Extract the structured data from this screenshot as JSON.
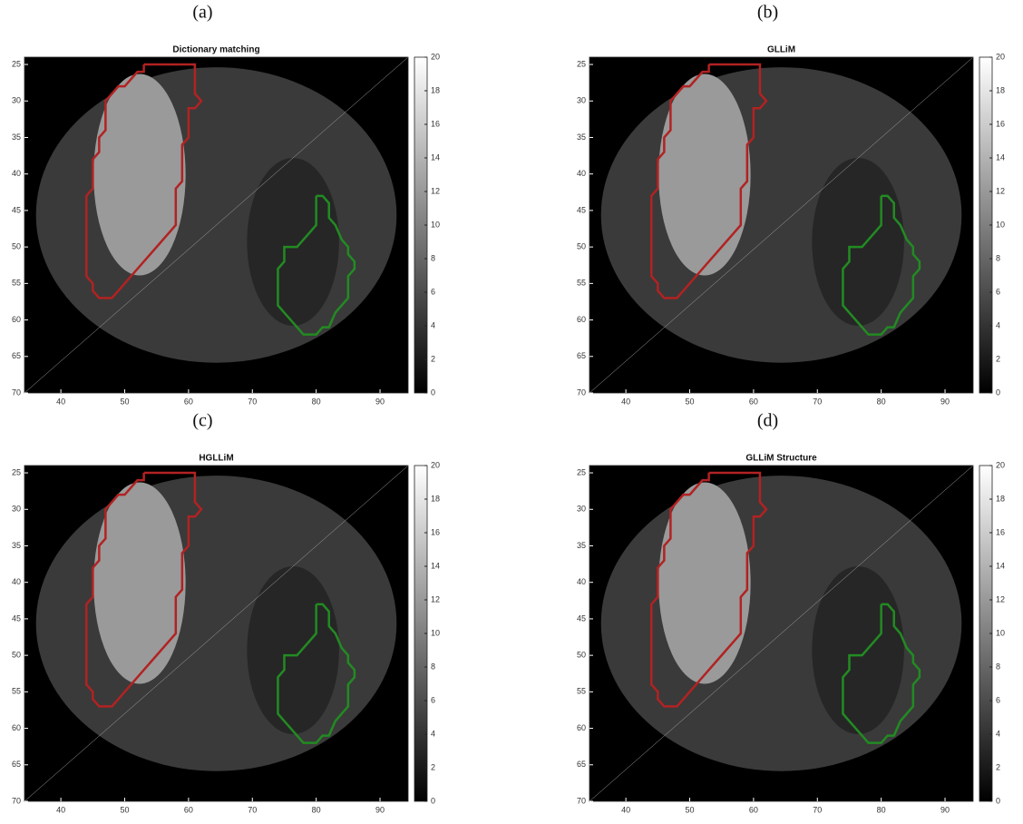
{
  "chart_data": [
    {
      "type": "heatmap",
      "panel_label": "(a)",
      "title": "Dictionary matching",
      "xlim": [
        34.3,
        94.4
      ],
      "ylim": [
        24,
        70
      ],
      "y_reversed": true,
      "xticks": [
        40,
        50,
        60,
        70,
        80,
        90
      ],
      "yticks": [
        25,
        30,
        35,
        40,
        45,
        50,
        55,
        60,
        65,
        70
      ],
      "clim": [
        0,
        20
      ],
      "cticks": [
        0,
        2,
        4,
        6,
        8,
        10,
        12,
        14,
        16,
        18,
        20
      ],
      "colormap": [
        "#000000",
        "#ffffff"
      ],
      "contours": [
        {
          "color": "#b22222",
          "x": [
            53,
            61,
            61,
            62,
            61,
            60,
            60,
            59,
            59,
            58,
            58,
            57,
            55,
            53,
            51,
            49,
            48,
            46,
            45,
            45,
            44,
            44,
            45,
            45,
            46,
            46,
            47,
            47,
            48,
            49,
            50,
            51,
            52,
            53,
            53
          ],
          "y": [
            25,
            25,
            29,
            30,
            31,
            31,
            35,
            36,
            41,
            42,
            47,
            48,
            50,
            52,
            54,
            56,
            57,
            57,
            56,
            55,
            54,
            43,
            42,
            38,
            37,
            35,
            34,
            30,
            29,
            28,
            28,
            27,
            26,
            26,
            25
          ]
        },
        {
          "color": "#228b22",
          "x": [
            80,
            81,
            82,
            82,
            83,
            84,
            85,
            85,
            86,
            86,
            85,
            85,
            84,
            83,
            82,
            81,
            80,
            78,
            77,
            75,
            74,
            74,
            75,
            75,
            77,
            78,
            79,
            80,
            80,
            80
          ],
          "y": [
            43,
            43,
            44,
            46,
            47,
            49,
            50,
            51,
            52,
            53,
            54,
            57,
            58,
            59,
            61,
            61,
            62,
            62,
            61,
            59,
            58,
            53,
            52,
            50,
            50,
            49,
            48,
            47,
            45,
            43
          ]
        }
      ]
    },
    {
      "type": "heatmap",
      "panel_label": "(b)",
      "title": "GLLiM",
      "xlim": [
        34.3,
        94.4
      ],
      "ylim": [
        24,
        70
      ],
      "y_reversed": true,
      "xticks": [
        40,
        50,
        60,
        70,
        80,
        90
      ],
      "yticks": [
        25,
        30,
        35,
        40,
        45,
        50,
        55,
        60,
        65,
        70
      ],
      "clim": [
        0,
        20
      ],
      "cticks": [
        0,
        2,
        4,
        6,
        8,
        10,
        12,
        14,
        16,
        18,
        20
      ],
      "colormap": [
        "#000000",
        "#ffffff"
      ],
      "contours": [
        {
          "color": "#b22222",
          "x": [
            53,
            61,
            61,
            62,
            61,
            60,
            60,
            59,
            59,
            58,
            58,
            57,
            55,
            53,
            51,
            49,
            48,
            46,
            45,
            45,
            44,
            44,
            45,
            45,
            46,
            46,
            47,
            47,
            48,
            49,
            50,
            51,
            52,
            53,
            53
          ],
          "y": [
            25,
            25,
            29,
            30,
            31,
            31,
            35,
            36,
            41,
            42,
            47,
            48,
            50,
            52,
            54,
            56,
            57,
            57,
            56,
            55,
            54,
            43,
            42,
            38,
            37,
            35,
            34,
            30,
            29,
            28,
            28,
            27,
            26,
            26,
            25
          ]
        },
        {
          "color": "#228b22",
          "x": [
            80,
            81,
            82,
            82,
            83,
            84,
            85,
            85,
            86,
            86,
            85,
            85,
            84,
            83,
            82,
            81,
            80,
            78,
            77,
            75,
            74,
            74,
            75,
            75,
            77,
            78,
            79,
            80,
            80,
            80
          ],
          "y": [
            43,
            43,
            44,
            46,
            47,
            49,
            50,
            51,
            52,
            53,
            54,
            57,
            58,
            59,
            61,
            61,
            62,
            62,
            61,
            59,
            58,
            53,
            52,
            50,
            50,
            49,
            48,
            47,
            45,
            43
          ]
        }
      ]
    },
    {
      "type": "heatmap",
      "panel_label": "(c)",
      "title": "HGLLiM",
      "xlim": [
        34.3,
        94.4
      ],
      "ylim": [
        24,
        70
      ],
      "y_reversed": true,
      "xticks": [
        40,
        50,
        60,
        70,
        80,
        90
      ],
      "yticks": [
        25,
        30,
        35,
        40,
        45,
        50,
        55,
        60,
        65,
        70
      ],
      "clim": [
        0,
        20
      ],
      "cticks": [
        0,
        2,
        4,
        6,
        8,
        10,
        12,
        14,
        16,
        18,
        20
      ],
      "colormap": [
        "#000000",
        "#ffffff"
      ],
      "contours": [
        {
          "color": "#b22222",
          "x": [
            53,
            61,
            61,
            62,
            61,
            60,
            60,
            59,
            59,
            58,
            58,
            57,
            55,
            53,
            51,
            49,
            48,
            46,
            45,
            45,
            44,
            44,
            45,
            45,
            46,
            46,
            47,
            47,
            48,
            49,
            50,
            51,
            52,
            53,
            53
          ],
          "y": [
            25,
            25,
            29,
            30,
            31,
            31,
            35,
            36,
            41,
            42,
            47,
            48,
            50,
            52,
            54,
            56,
            57,
            57,
            56,
            55,
            54,
            43,
            42,
            38,
            37,
            35,
            34,
            30,
            29,
            28,
            28,
            27,
            26,
            26,
            25
          ]
        },
        {
          "color": "#228b22",
          "x": [
            80,
            81,
            82,
            82,
            83,
            84,
            85,
            85,
            86,
            86,
            85,
            85,
            84,
            83,
            82,
            81,
            80,
            78,
            77,
            75,
            74,
            74,
            75,
            75,
            77,
            78,
            79,
            80,
            80,
            80
          ],
          "y": [
            43,
            43,
            44,
            46,
            47,
            49,
            50,
            51,
            52,
            53,
            54,
            57,
            58,
            59,
            61,
            61,
            62,
            62,
            61,
            59,
            58,
            53,
            52,
            50,
            50,
            49,
            48,
            47,
            45,
            43
          ]
        }
      ]
    },
    {
      "type": "heatmap",
      "panel_label": "(d)",
      "title": "GLLiM Structure",
      "xlim": [
        34.3,
        94.4
      ],
      "ylim": [
        24,
        70
      ],
      "y_reversed": true,
      "xticks": [
        40,
        50,
        60,
        70,
        80,
        90
      ],
      "yticks": [
        25,
        30,
        35,
        40,
        45,
        50,
        55,
        60,
        65,
        70
      ],
      "clim": [
        0,
        20
      ],
      "cticks": [
        0,
        2,
        4,
        6,
        8,
        10,
        12,
        14,
        16,
        18,
        20
      ],
      "colormap": [
        "#000000",
        "#ffffff"
      ],
      "contours": [
        {
          "color": "#b22222",
          "x": [
            53,
            61,
            61,
            62,
            61,
            60,
            60,
            59,
            59,
            58,
            58,
            57,
            55,
            53,
            51,
            49,
            48,
            46,
            45,
            45,
            44,
            44,
            45,
            45,
            46,
            46,
            47,
            47,
            48,
            49,
            50,
            51,
            52,
            53,
            53
          ],
          "y": [
            25,
            25,
            29,
            30,
            31,
            31,
            35,
            36,
            41,
            42,
            47,
            48,
            50,
            52,
            54,
            56,
            57,
            57,
            56,
            55,
            54,
            43,
            42,
            38,
            37,
            35,
            34,
            30,
            29,
            28,
            28,
            27,
            26,
            26,
            25
          ]
        },
        {
          "color": "#228b22",
          "x": [
            80,
            81,
            82,
            82,
            83,
            84,
            85,
            85,
            86,
            86,
            85,
            85,
            84,
            83,
            82,
            81,
            80,
            78,
            77,
            75,
            74,
            74,
            75,
            75,
            77,
            78,
            79,
            80,
            80,
            80
          ],
          "y": [
            43,
            43,
            44,
            46,
            47,
            49,
            50,
            51,
            52,
            53,
            54,
            57,
            58,
            59,
            61,
            61,
            62,
            62,
            61,
            59,
            58,
            53,
            52,
            50,
            50,
            49,
            48,
            47,
            45,
            43
          ]
        }
      ]
    }
  ]
}
